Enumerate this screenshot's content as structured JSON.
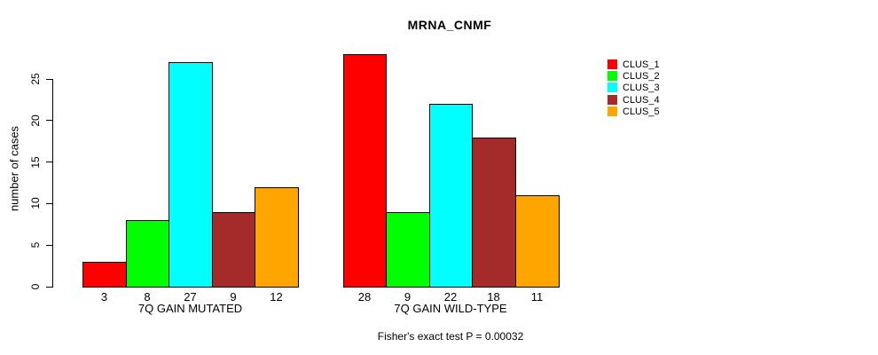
{
  "chart_data": {
    "type": "bar",
    "title": "MRNA_CNMF",
    "ylabel": "number of cases",
    "xlabel": "",
    "ylim": [
      0,
      28
    ],
    "yticks": [
      0,
      5,
      10,
      15,
      20,
      25
    ],
    "grid": false,
    "bar_border_color": "#000000",
    "legend_position": "top-right-outside",
    "categories": [
      "7Q GAIN MUTATED",
      "7Q GAIN WILD-TYPE"
    ],
    "series": [
      {
        "name": "CLUS_1",
        "color": "#FF0000",
        "values": [
          3,
          28
        ]
      },
      {
        "name": "CLUS_2",
        "color": "#00FF00",
        "values": [
          8,
          9
        ]
      },
      {
        "name": "CLUS_3",
        "color": "#00FFFF",
        "values": [
          27,
          22
        ]
      },
      {
        "name": "CLUS_4",
        "color": "#A52A2A",
        "values": [
          9,
          18
        ]
      },
      {
        "name": "CLUS_5",
        "color": "#FFA500",
        "values": [
          12,
          11
        ]
      }
    ],
    "bar_value_labels": [
      [
        3,
        8,
        27,
        9,
        12
      ],
      [
        28,
        9,
        22,
        18,
        11
      ]
    ],
    "annotation": "Fisher's exact test P = 0.00032"
  }
}
